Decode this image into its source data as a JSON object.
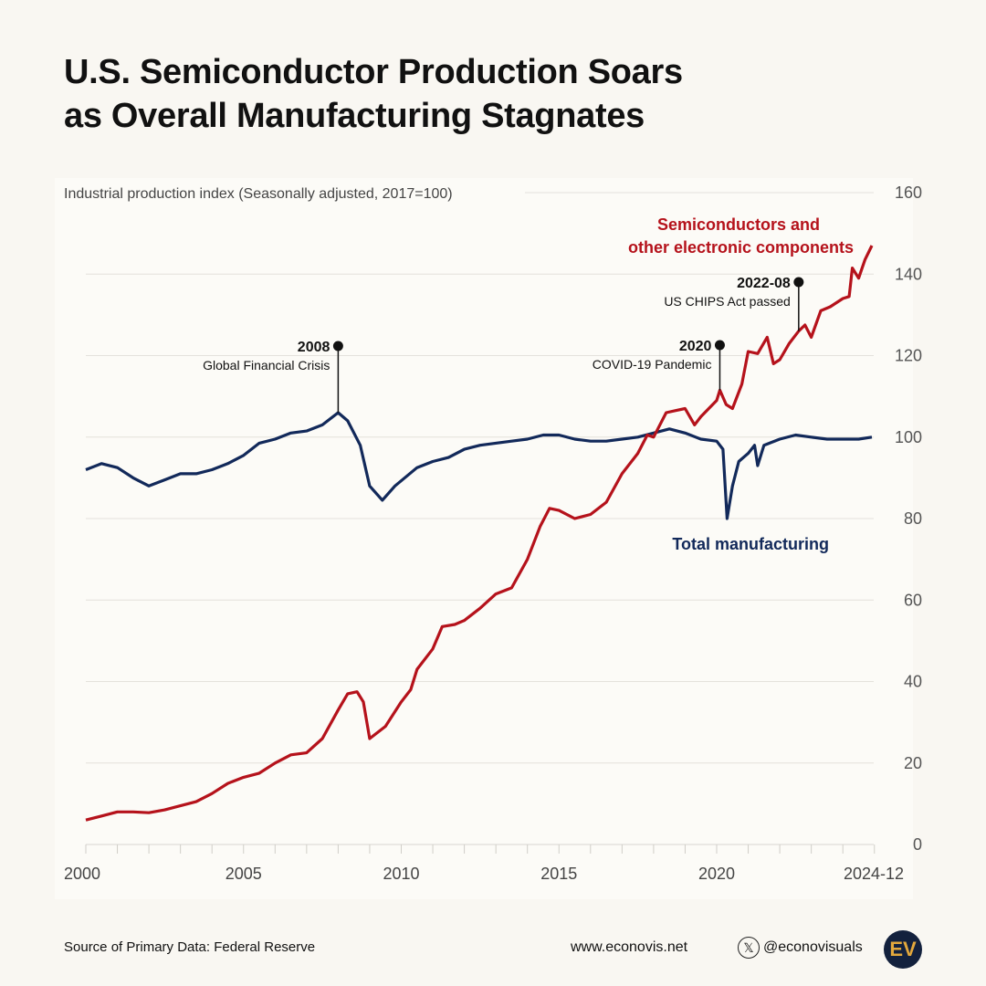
{
  "title_line1": "U.S. Semiconductor Production Soars",
  "title_line2": "as Overall Manufacturing Stagnates",
  "chart_data": {
    "type": "line",
    "ylabel": "Industrial production index (Seasonally adjusted, 2017=100)",
    "ylim": [
      0,
      160
    ],
    "yticks": [
      0,
      20,
      40,
      60,
      80,
      100,
      120,
      140,
      160
    ],
    "xlim": [
      2000,
      2024.92
    ],
    "xtick_labels": [
      "2000",
      "2005",
      "2010",
      "2015",
      "2020",
      "2024-12"
    ],
    "xtick_values": [
      2000,
      2005,
      2010,
      2015,
      2020,
      2024.92
    ],
    "grid": true,
    "series": [
      {
        "name": "Semiconductors and other electronic components",
        "color": "#b5121b",
        "x": [
          2000,
          2000.5,
          2001,
          2001.5,
          2002,
          2002.5,
          2003,
          2003.5,
          2004,
          2004.5,
          2005,
          2005.5,
          2006,
          2006.5,
          2007,
          2007.5,
          2008,
          2008.3,
          2008.6,
          2008.8,
          2009,
          2009.5,
          2010,
          2010.3,
          2010.5,
          2011,
          2011.3,
          2011.7,
          2012,
          2012.5,
          2013,
          2013.5,
          2014,
          2014.4,
          2014.7,
          2015,
          2015.5,
          2016,
          2016.5,
          2017,
          2017.5,
          2017.8,
          2018,
          2018.4,
          2018.7,
          2019,
          2019.3,
          2019.5,
          2020,
          2020.1,
          2020.3,
          2020.5,
          2020.8,
          2021,
          2021.3,
          2021.6,
          2021.8,
          2022,
          2022.3,
          2022.6,
          2022.8,
          2023,
          2023.3,
          2023.6,
          2024,
          2024.2,
          2024.3,
          2024.5,
          2024.7,
          2024.92
        ],
        "y": [
          6,
          7,
          8,
          8,
          7.8,
          8.5,
          9.5,
          10.5,
          12.5,
          15,
          16.5,
          17.5,
          20,
          22,
          22.5,
          26,
          33,
          37,
          37.5,
          35,
          26,
          29,
          35,
          38,
          43,
          48,
          53.5,
          54,
          55,
          58,
          61.5,
          63,
          70,
          78,
          82.5,
          82,
          80,
          81,
          84,
          91,
          96,
          100.5,
          100,
          106,
          106.5,
          107,
          103,
          105,
          109,
          111.5,
          108,
          107,
          113,
          121,
          120.5,
          124.5,
          118,
          119,
          123,
          126,
          127.5,
          124.5,
          131,
          132,
          134,
          134.5,
          141.5,
          139,
          143.5,
          147
        ]
      },
      {
        "name": "Total manufacturing",
        "color": "#12295a",
        "x": [
          2000,
          2000.5,
          2001,
          2001.5,
          2002,
          2002.5,
          2003,
          2003.5,
          2004,
          2004.5,
          2005,
          2005.5,
          2006,
          2006.5,
          2007,
          2007.5,
          2008,
          2008.3,
          2008.7,
          2009,
          2009.4,
          2009.8,
          2010.5,
          2011,
          2011.5,
          2012,
          2012.5,
          2013,
          2013.5,
          2014,
          2014.5,
          2015,
          2015.5,
          2016,
          2016.5,
          2017,
          2017.5,
          2018,
          2018.5,
          2019,
          2019.5,
          2020,
          2020.2,
          2020.33,
          2020.5,
          2020.7,
          2021,
          2021.2,
          2021.3,
          2021.5,
          2022,
          2022.5,
          2023,
          2023.5,
          2024,
          2024.5,
          2024.92
        ],
        "y": [
          92,
          93.5,
          92.5,
          90,
          88,
          89.5,
          91,
          91,
          92,
          93.5,
          95.5,
          98.5,
          99.5,
          101,
          101.5,
          103,
          106,
          104,
          98,
          88,
          84.5,
          88,
          92.5,
          94,
          95,
          97,
          98,
          98.5,
          99,
          99.5,
          100.5,
          100.5,
          99.5,
          99,
          99,
          99.5,
          100,
          101,
          102,
          101,
          99.5,
          99,
          97,
          80,
          88,
          94,
          96,
          98,
          93,
          98,
          99.5,
          100.5,
          100,
          99.5,
          99.5,
          99.5,
          100
        ]
      }
    ],
    "annotations": [
      {
        "year_label": "2008",
        "text": "Global Financial Crisis",
        "x": 2008.0,
        "series": "Total manufacturing"
      },
      {
        "year_label": "2020",
        "text": "COVID-19 Pandemic",
        "x": 2020.1,
        "series": "Semiconductors and other electronic components"
      },
      {
        "year_label": "2022-08",
        "text": "US CHIPS Act passed",
        "x": 2022.6,
        "series": "Semiconductors and other electronic components"
      }
    ]
  },
  "footer": {
    "source": "Source of Primary Data: Federal Reserve",
    "website": "www.econovis.net",
    "handle": "@econovisuals",
    "logo_text": "EV"
  }
}
